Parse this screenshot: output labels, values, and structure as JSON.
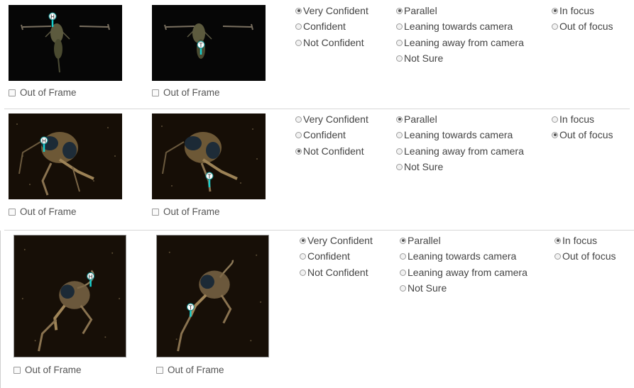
{
  "rows": [
    {
      "head_marker": "H",
      "tail_marker": "T",
      "out_of_frame_left": "Out of Frame",
      "out_of_frame_right": "Out of Frame",
      "confidence": [
        {
          "label": "Very Confident",
          "selected": true
        },
        {
          "label": "Confident",
          "selected": false
        },
        {
          "label": "Not Confident",
          "selected": false
        }
      ],
      "orientation": [
        {
          "label": "Parallel",
          "selected": true
        },
        {
          "label": "Leaning towards camera",
          "selected": false
        },
        {
          "label": "Leaning away from camera",
          "selected": false
        },
        {
          "label": "Not Sure",
          "selected": false
        }
      ],
      "focus": [
        {
          "label": "In focus",
          "selected": true
        },
        {
          "label": "Out of focus",
          "selected": false
        }
      ]
    },
    {
      "head_marker": "H",
      "tail_marker": "T",
      "out_of_frame_left": "Out of Frame",
      "out_of_frame_right": "Out of Frame",
      "confidence": [
        {
          "label": "Very Confident",
          "selected": false
        },
        {
          "label": "Confident",
          "selected": false
        },
        {
          "label": "Not Confident",
          "selected": true
        }
      ],
      "orientation": [
        {
          "label": "Parallel",
          "selected": true
        },
        {
          "label": "Leaning towards camera",
          "selected": false
        },
        {
          "label": "Leaning away from camera",
          "selected": false
        },
        {
          "label": "Not Sure",
          "selected": false
        }
      ],
      "focus": [
        {
          "label": "In focus",
          "selected": false
        },
        {
          "label": "Out of focus",
          "selected": true
        }
      ]
    },
    {
      "head_marker": "H",
      "tail_marker": "T",
      "out_of_frame_left": "Out of Frame",
      "out_of_frame_right": "Out of Frame",
      "confidence": [
        {
          "label": "Very Confident",
          "selected": true
        },
        {
          "label": "Confident",
          "selected": false
        },
        {
          "label": "Not Confident",
          "selected": false
        }
      ],
      "orientation": [
        {
          "label": "Parallel",
          "selected": true
        },
        {
          "label": "Leaning towards camera",
          "selected": false
        },
        {
          "label": "Leaning away from camera",
          "selected": false
        },
        {
          "label": "Not Sure",
          "selected": false
        }
      ],
      "focus": [
        {
          "label": "In focus",
          "selected": true
        },
        {
          "label": "Out of focus",
          "selected": false
        }
      ]
    }
  ]
}
